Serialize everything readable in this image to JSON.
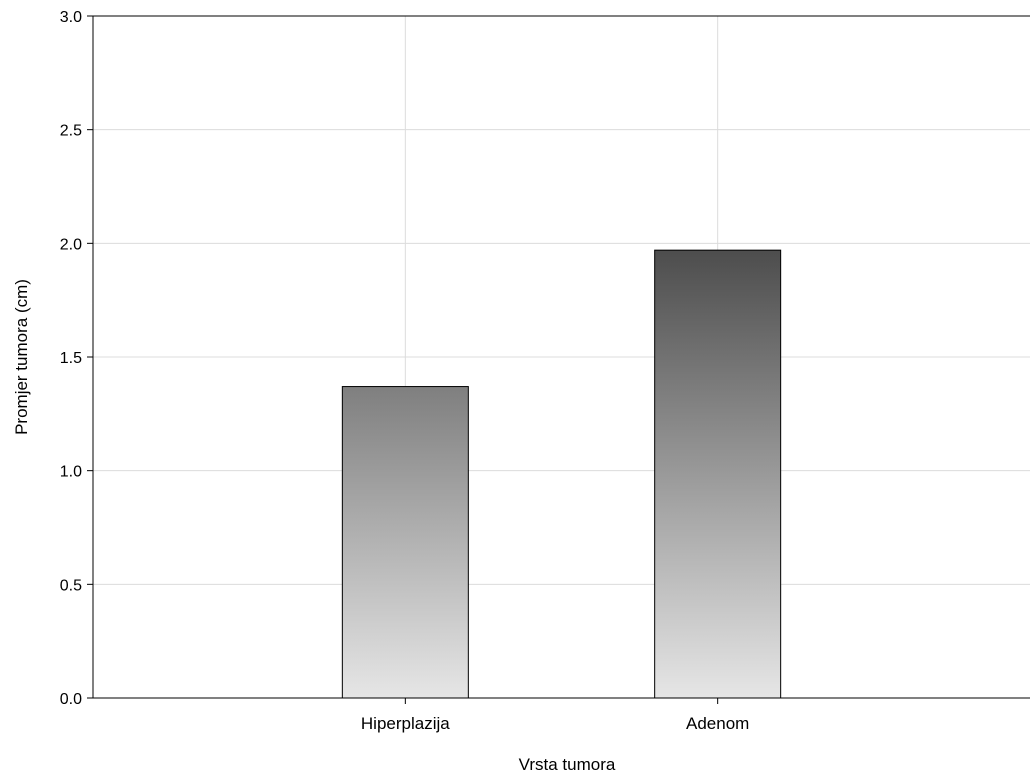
{
  "chart_data": {
    "type": "bar",
    "title": "",
    "xlabel": "Vrsta tumora",
    "ylabel": "Promjer tumora (cm)",
    "categories": [
      "Hiperplazija",
      "Adenom"
    ],
    "values": [
      1.37,
      1.97
    ],
    "ylim": [
      0,
      3
    ],
    "yticks": [
      "0.0",
      "0.5",
      "1.0",
      "1.5",
      "2.0",
      "2.5",
      "3.0"
    ],
    "grid": true,
    "legend": "none",
    "colors": {
      "bar_top_1": "#7f7f7f",
      "bar_top_2": "#4d4d4d",
      "bar_bottom": "#e6e6e6",
      "grid": "#dcdcdc"
    }
  }
}
